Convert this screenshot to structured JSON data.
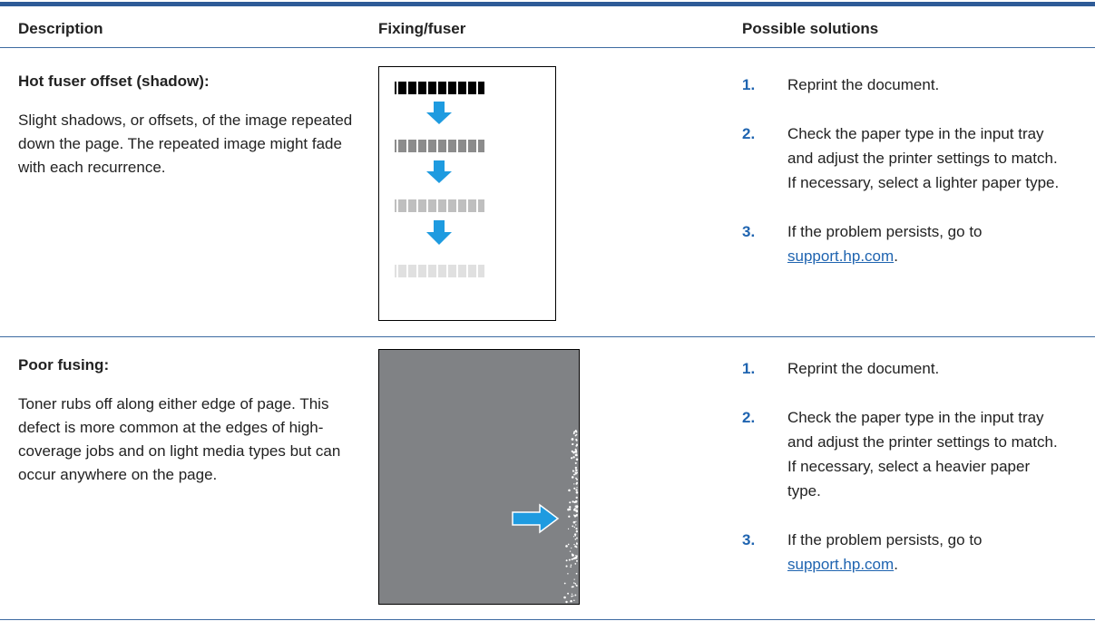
{
  "header": {
    "columns": [
      "Description",
      "Fixing/fuser",
      "Possible solutions"
    ]
  },
  "rows": [
    {
      "title": "Hot fuser offset (shadow):",
      "description": "Slight shadows, or offsets, of the image repeated down the page. The repeated image might fade with each recurrence.",
      "solutions": [
        {
          "number": "1.",
          "text": "Reprint the document."
        },
        {
          "number": "2.",
          "text": "Check the paper type in the input tray and adjust the printer settings to match. If necessary, select a lighter paper type."
        },
        {
          "number": "3.",
          "text": "If the problem persists, go to",
          "link": "support.hp.com",
          "end": "."
        }
      ]
    },
    {
      "title": "Poor fusing:",
      "description": "Toner rubs off along either edge of page. This defect is more common at the edges of high-coverage jobs and on light media types but can occur anywhere on the page.",
      "solutions": [
        {
          "number": "1.",
          "text": "Reprint the document."
        },
        {
          "number": "2.",
          "text": "Check the paper type in the input tray and adjust the printer settings to match. If necessary, select a heavier paper type."
        },
        {
          "number": "3.",
          "text": "If the problem persists, go to",
          "link": "support.hp.com",
          "end": "."
        }
      ]
    }
  ]
}
